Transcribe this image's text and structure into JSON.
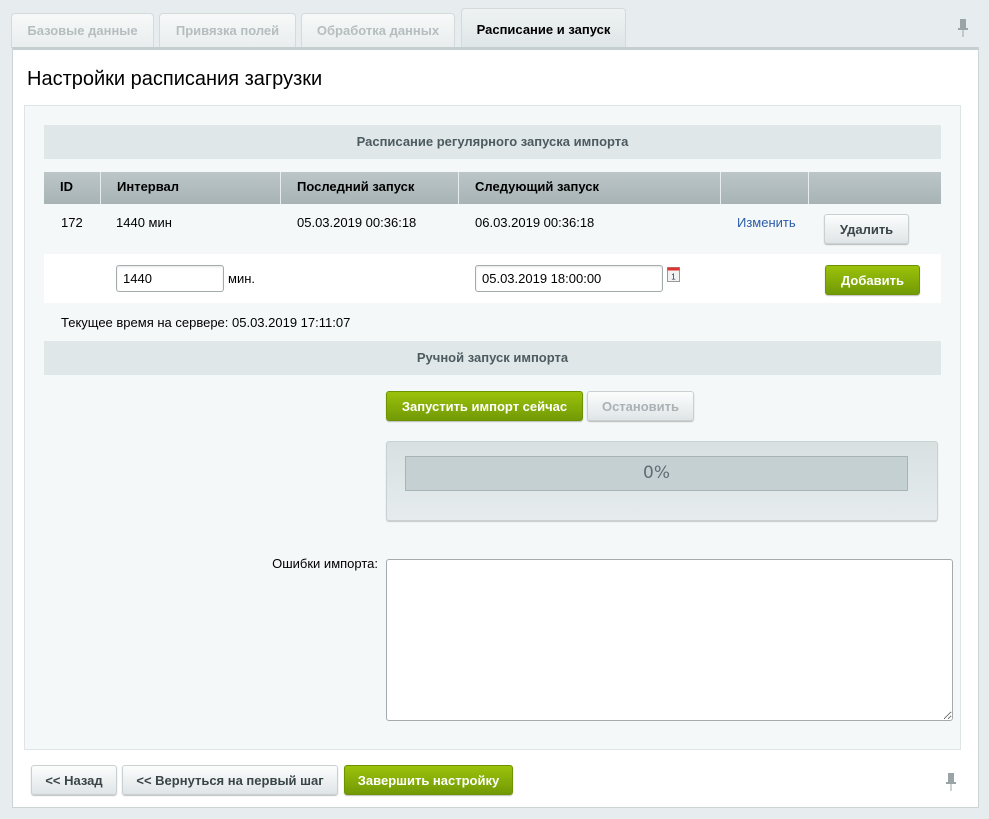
{
  "tabs": [
    {
      "label": "Базовые данные"
    },
    {
      "label": "Привязка полей"
    },
    {
      "label": "Обработка данных"
    },
    {
      "label": "Расписание и запуск"
    }
  ],
  "heading": "Настройки расписания загрузки",
  "schedule": {
    "title": "Расписание регулярного запуска импорта",
    "columns": [
      "ID",
      "Интервал",
      "Последний запуск",
      "Следующий запуск",
      "",
      ""
    ],
    "rows": [
      {
        "id": "172",
        "interval": "1440 мин",
        "last": "05.03.2019 00:36:18",
        "next": "06.03.2019 00:36:18",
        "edit": "Изменить",
        "delete": "Удалить"
      }
    ],
    "new": {
      "interval": "1440",
      "unit": "мин.",
      "next": "05.03.2019 18:00:00",
      "add": "Добавить"
    },
    "server_time": "Текущее время на сервере: 05.03.2019 17:11:07"
  },
  "manual": {
    "title": "Ручной запуск импорта",
    "start": "Запустить импорт сейчас",
    "stop": "Остановить",
    "progress_label": "0%",
    "progress": 0,
    "errors_label": "Ошибки импорта:",
    "errors_value": ""
  },
  "footer": {
    "back": "<< Назад",
    "first": "<< Вернуться на первый шаг",
    "finish": "Завершить настройку"
  },
  "colors": {
    "accent": "#7fa806",
    "link": "#2b5ca8"
  }
}
